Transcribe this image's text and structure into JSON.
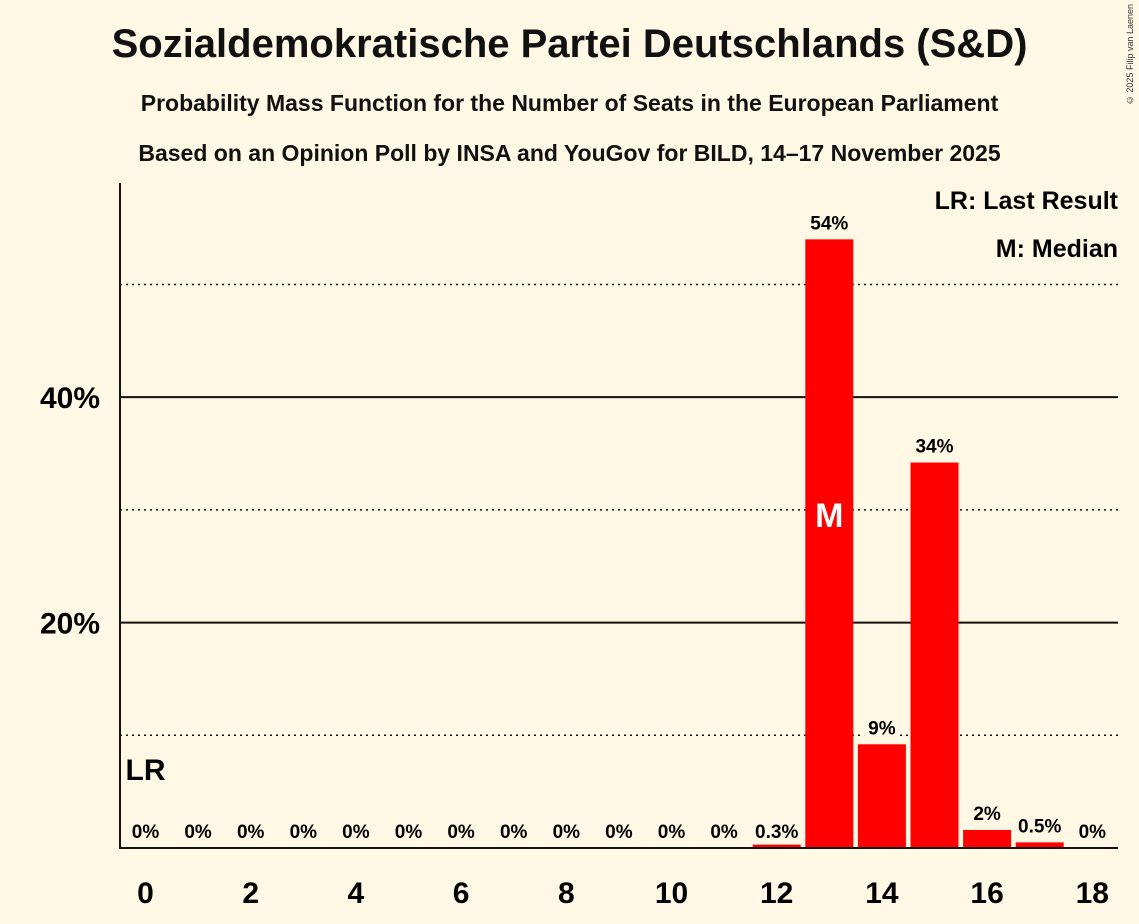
{
  "chart_data": {
    "type": "bar",
    "title": "Sozialdemokratische Partei Deutschlands (S&D)",
    "subtitle": "Probability Mass Function for the Number of Seats in the European Parliament",
    "subtitle2": "Based on an Opinion Poll by INSA and YouGov for BILD, 14–17 November 2025",
    "copyright": "© 2025 Filip van Laenen",
    "xlabel": "",
    "ylabel": "",
    "ylim": [
      0,
      59
    ],
    "categories": [
      0,
      1,
      2,
      3,
      4,
      5,
      6,
      7,
      8,
      9,
      10,
      11,
      12,
      13,
      14,
      15,
      16,
      17,
      18
    ],
    "values": [
      0,
      0,
      0,
      0,
      0,
      0,
      0,
      0,
      0,
      0,
      0,
      0,
      0.3,
      54,
      9.2,
      34.2,
      1.6,
      0.5,
      0
    ],
    "value_labels": [
      "0%",
      "0%",
      "0%",
      "0%",
      "0%",
      "0%",
      "0%",
      "0%",
      "0%",
      "0%",
      "0%",
      "0%",
      "0.3%",
      "54%",
      "9%",
      "34%",
      "2%",
      "0.5%",
      "0%"
    ],
    "x_ticks": [
      "0",
      "2",
      "4",
      "6",
      "8",
      "10",
      "12",
      "14",
      "16",
      "18"
    ],
    "y_ticks": [
      {
        "value": 20,
        "label": "20%"
      },
      {
        "value": 40,
        "label": "40%"
      }
    ],
    "dotted_gridlines": [
      10,
      30,
      50
    ],
    "bar_color": "#ff0000",
    "median_seat": 13,
    "median_marker": "M",
    "last_result_seat": 0,
    "last_result_marker": "LR",
    "legend": [
      "LR: Last Result",
      "M: Median"
    ],
    "legend_position": "top-right"
  }
}
